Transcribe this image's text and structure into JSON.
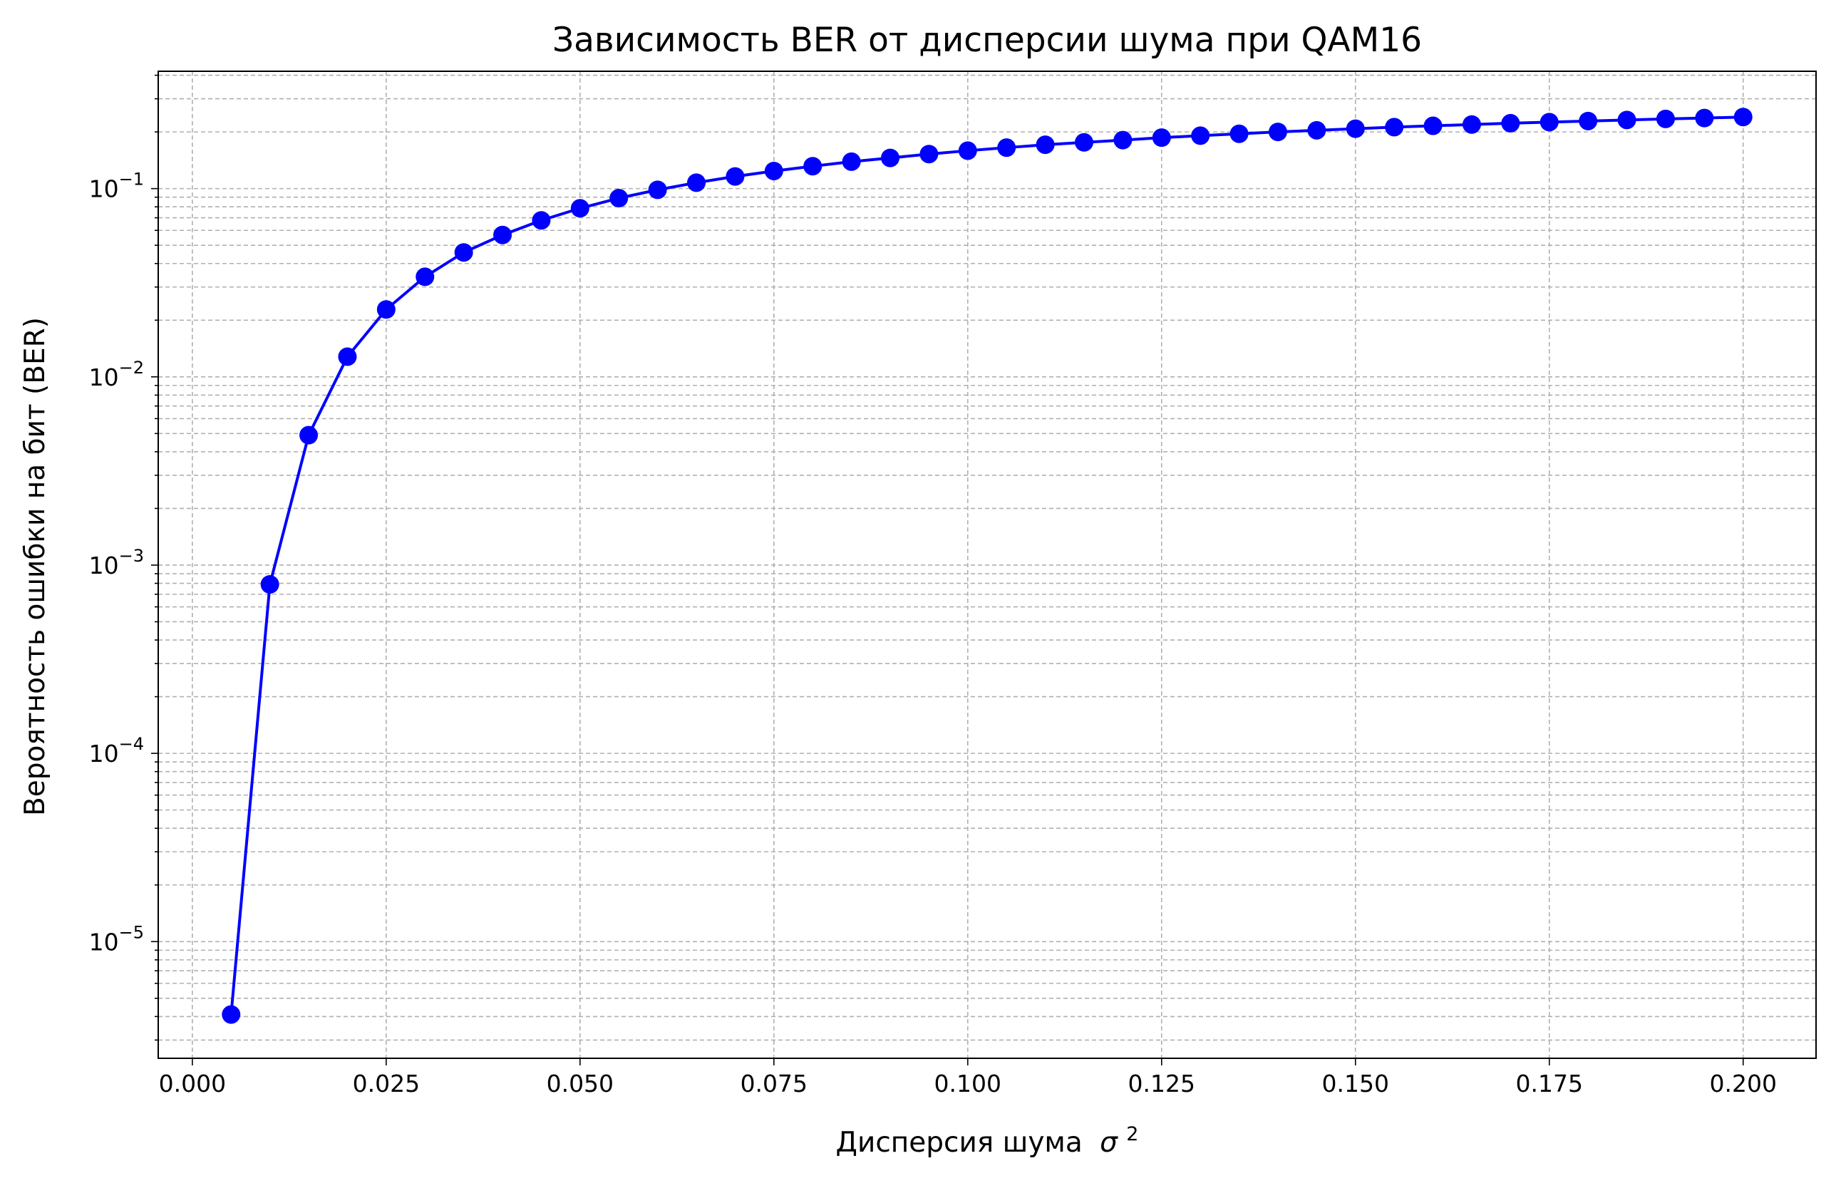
{
  "chart_data": {
    "type": "line",
    "title": "Зависимость BER от дисперсии шума при QAM16",
    "xlabel": "Дисперсия шума",
    "xlabel_symbol": "σ",
    "xlabel_power": "2",
    "ylabel": "Вероятность ошибки на бит (BER)",
    "yscale": "log",
    "xlim": [
      -0.0044,
      0.2094
    ],
    "ylim": [
      2.4e-06,
      0.42
    ],
    "x_ticks": [
      0.0,
      0.025,
      0.05,
      0.075,
      0.1,
      0.125,
      0.15,
      0.175,
      0.2
    ],
    "x_tick_labels": [
      "0.000",
      "0.025",
      "0.050",
      "0.075",
      "0.100",
      "0.125",
      "0.150",
      "0.175",
      "0.200"
    ],
    "y_ticks": [
      {
        "value": 1e-05,
        "base": "10",
        "exp": "−5"
      },
      {
        "value": 0.0001,
        "base": "10",
        "exp": "−4"
      },
      {
        "value": 0.001,
        "base": "10",
        "exp": "−3"
      },
      {
        "value": 0.01,
        "base": "10",
        "exp": "−2"
      },
      {
        "value": 0.1,
        "base": "10",
        "exp": "−1"
      }
    ],
    "grid": true,
    "grid_style": "dashed",
    "series": [
      {
        "color": "#0000ff",
        "marker": "circle",
        "x": [
          0.005,
          0.01,
          0.015,
          0.02,
          0.025,
          0.03,
          0.035,
          0.04,
          0.045,
          0.05,
          0.055,
          0.06,
          0.065,
          0.07,
          0.075,
          0.08,
          0.085,
          0.09,
          0.095,
          0.1,
          0.105,
          0.11,
          0.115,
          0.12,
          0.125,
          0.13,
          0.135,
          0.14,
          0.145,
          0.15,
          0.155,
          0.16,
          0.165,
          0.17,
          0.175,
          0.18,
          0.185,
          0.19,
          0.195,
          0.2
        ],
        "y": [
          4.1e-06,
          0.00079,
          0.0049,
          0.0128,
          0.0228,
          0.034,
          0.0458,
          0.0567,
          0.0678,
          0.0786,
          0.089,
          0.0985,
          0.1075,
          0.116,
          0.124,
          0.1315,
          0.139,
          0.1455,
          0.1525,
          0.159,
          0.165,
          0.171,
          0.176,
          0.181,
          0.1865,
          0.191,
          0.1955,
          0.2,
          0.204,
          0.208,
          0.212,
          0.2155,
          0.219,
          0.2225,
          0.2255,
          0.2285,
          0.2315,
          0.2345,
          0.237,
          0.24
        ]
      }
    ]
  }
}
